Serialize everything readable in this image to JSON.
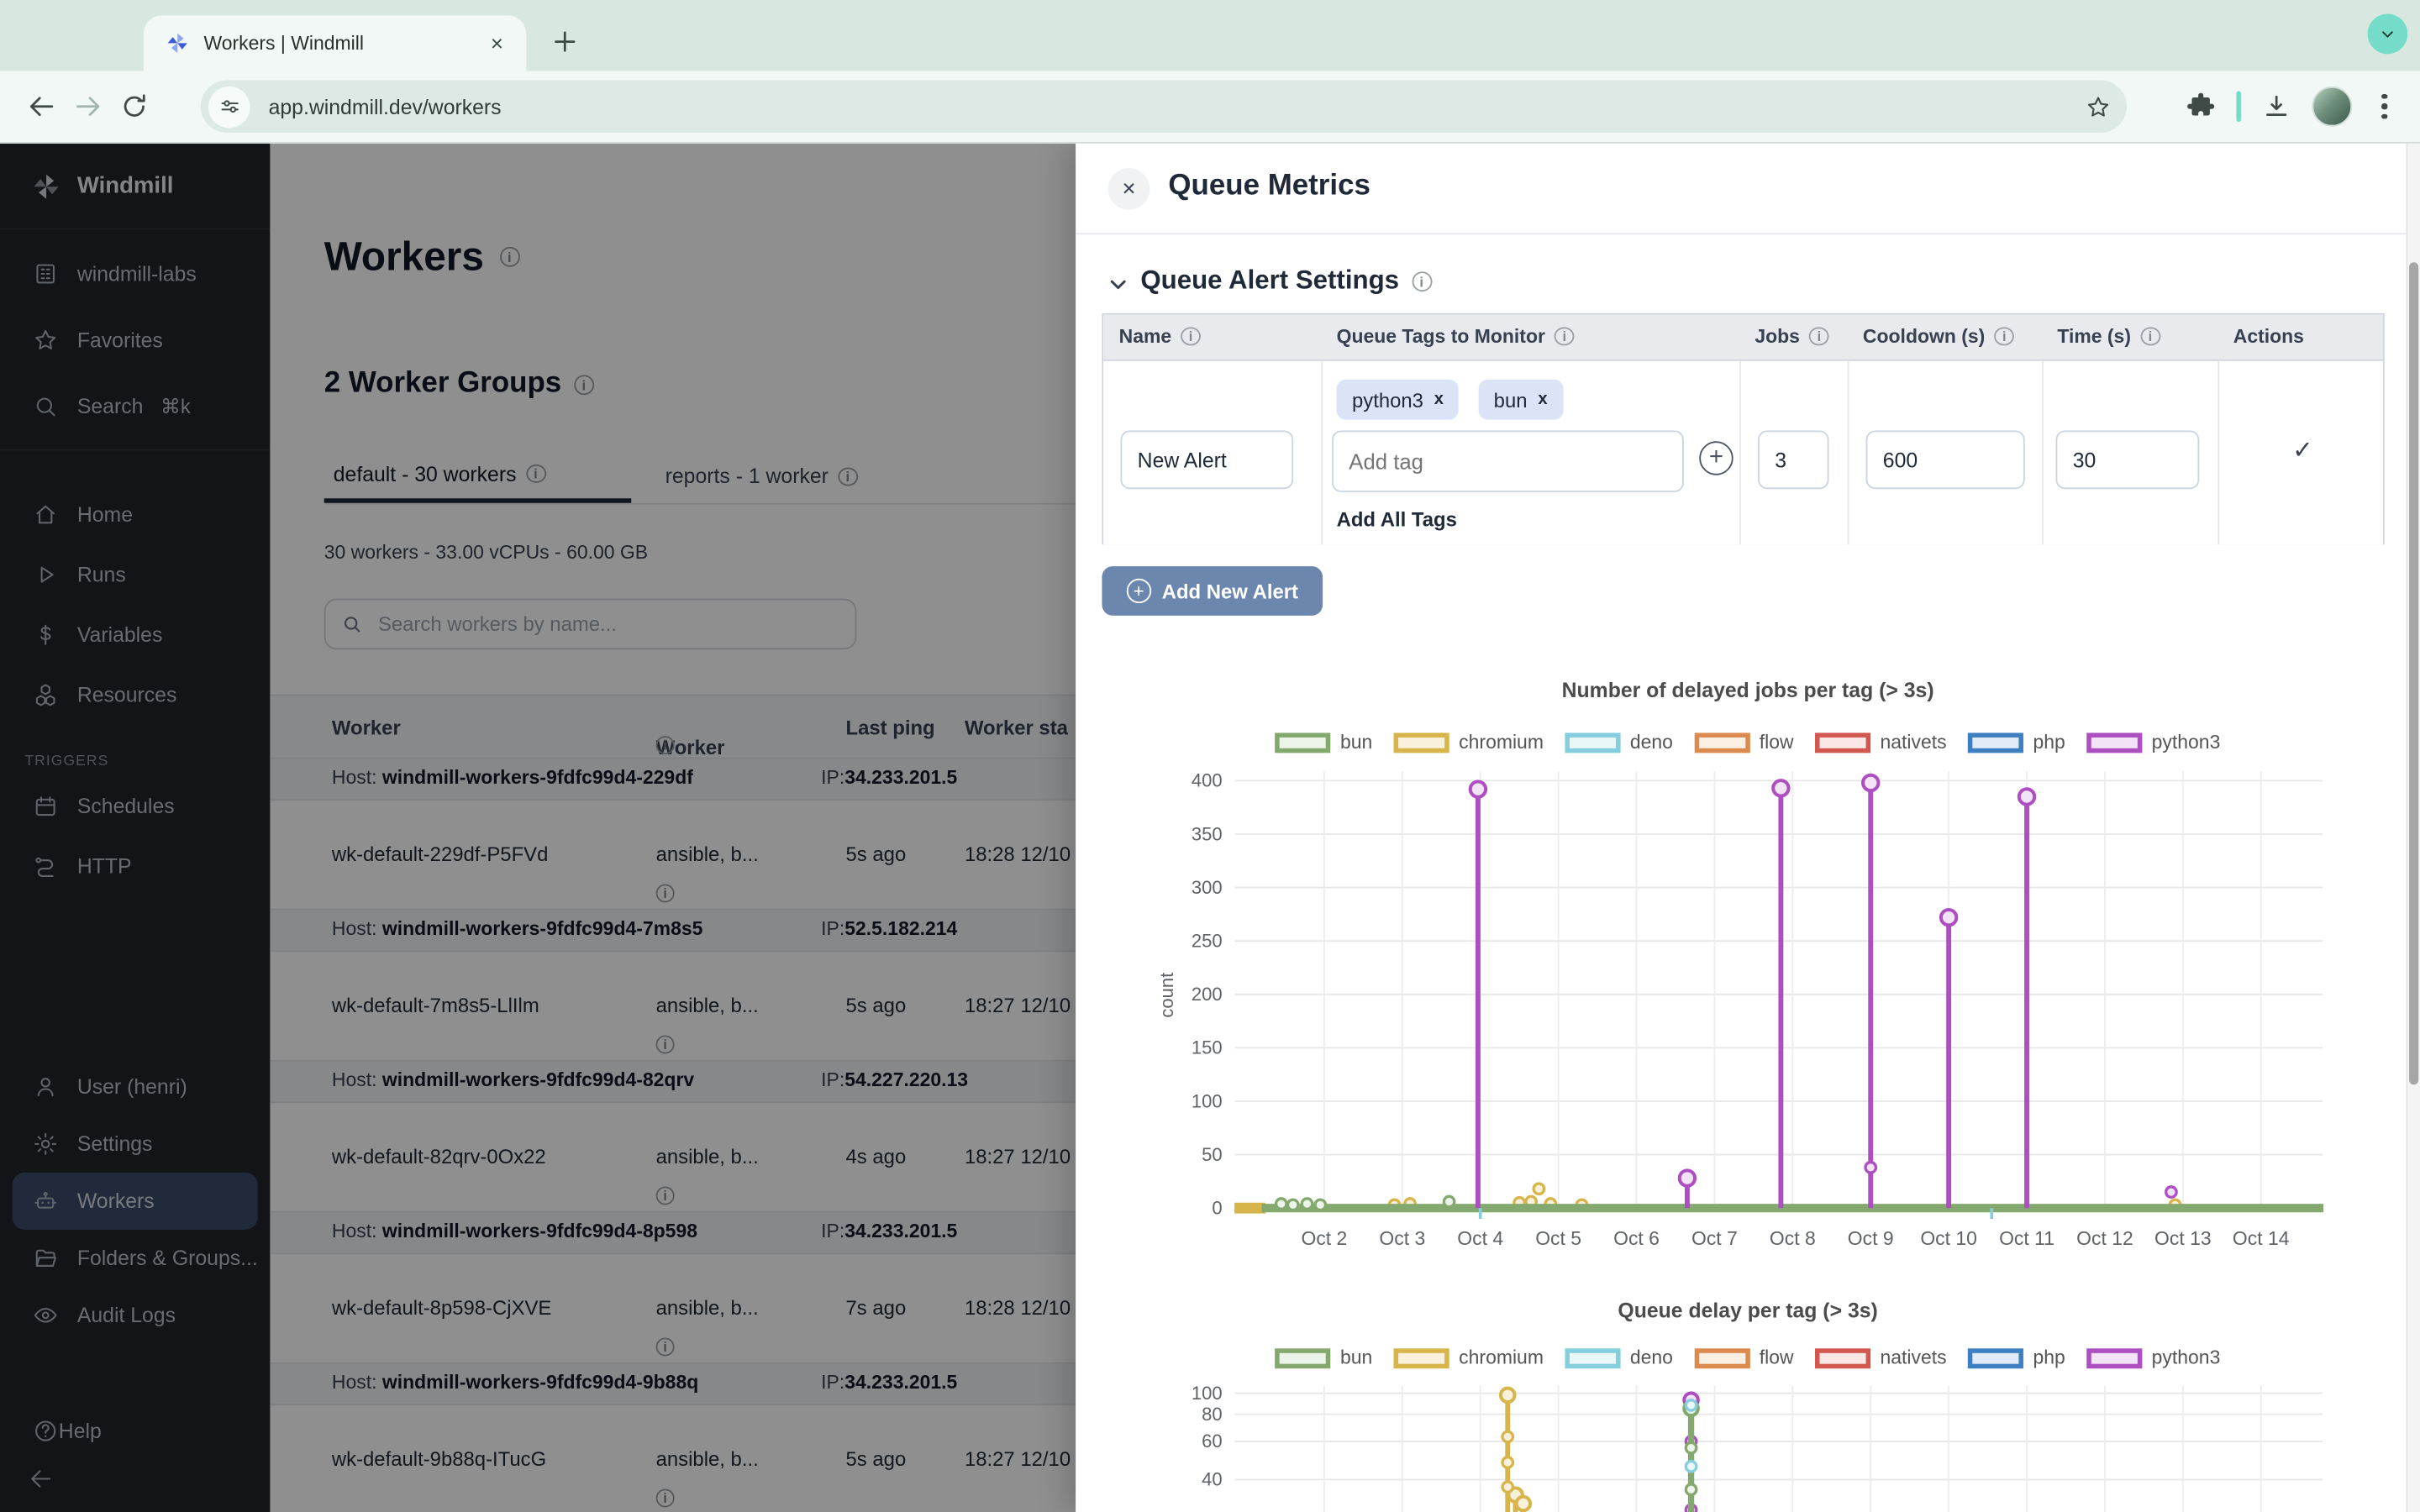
{
  "browser": {
    "tab_title": "Workers | Windmill",
    "url": "app.windmill.dev/workers",
    "new_tab_glyph": "+",
    "close_glyph": "×"
  },
  "colors": {
    "accent_teal": "#74dcc8",
    "button_blue": "#6b87ae",
    "chip_bg": "#dbe4f6",
    "sidebar_bg": "#20242b",
    "selected_item_bg": "#3a4c6a"
  },
  "sidebar": {
    "brand": "Windmill",
    "sections": [
      {
        "items": [
          {
            "icon": "workspace-icon",
            "label": "windmill-labs"
          },
          {
            "icon": "star-icon",
            "label": "Favorites"
          },
          {
            "icon": "search-icon",
            "label": "Search",
            "shortcut": "⌘k"
          }
        ]
      },
      {
        "items": [
          {
            "icon": "home-icon",
            "label": "Home"
          },
          {
            "icon": "play-icon",
            "label": "Runs"
          },
          {
            "icon": "dollar-icon",
            "label": "Variables"
          },
          {
            "icon": "cubes-icon",
            "label": "Resources"
          }
        ]
      }
    ],
    "triggers_label": "TRIGGERS",
    "triggers": [
      {
        "icon": "calendar-icon",
        "label": "Schedules"
      },
      {
        "icon": "route-icon",
        "label": "HTTP"
      }
    ],
    "bottom": [
      {
        "icon": "user-icon",
        "label": "User (henri)"
      },
      {
        "icon": "gear-icon",
        "label": "Settings"
      },
      {
        "icon": "robot-icon",
        "label": "Workers",
        "active": true
      },
      {
        "icon": "folder-icon",
        "label": "Folders & Groups..."
      },
      {
        "icon": "eye-icon",
        "label": "Audit Logs"
      }
    ],
    "help_label": "Help"
  },
  "main": {
    "title": "Workers",
    "groups_title": "2 Worker Groups",
    "tabs": [
      {
        "label": "default - 30 workers",
        "active": true
      },
      {
        "label": "reports - 1 worker",
        "active": false
      }
    ],
    "stats": "30 workers - 33.00 vCPUs - 60.00 GB",
    "search_placeholder": "Search workers by name...",
    "table": {
      "headers": [
        "Worker",
        "Worker Tags",
        "Last ping",
        "Worker sta"
      ],
      "host_prefix": "Host:",
      "ip_prefix": "IP:",
      "rows": [
        {
          "type": "host",
          "host": "windmill-workers-9fdfc99d4-229df",
          "ip": "34.233.201.5"
        },
        {
          "type": "worker",
          "name": "wk-default-229df-P5FVd",
          "tags": "ansible, b...",
          "ping": "5s ago",
          "started": "18:28 12/10"
        },
        {
          "type": "host",
          "host": "windmill-workers-9fdfc99d4-7m8s5",
          "ip": "52.5.182.214"
        },
        {
          "type": "worker",
          "name": "wk-default-7m8s5-LlIlm",
          "tags": "ansible, b...",
          "ping": "5s ago",
          "started": "18:27 12/10"
        },
        {
          "type": "host",
          "host": "windmill-workers-9fdfc99d4-82qrv",
          "ip": "54.227.220.13"
        },
        {
          "type": "worker",
          "name": "wk-default-82qrv-0Ox22",
          "tags": "ansible, b...",
          "ping": "4s ago",
          "started": "18:27 12/10"
        },
        {
          "type": "host",
          "host": "windmill-workers-9fdfc99d4-8p598",
          "ip": "34.233.201.5"
        },
        {
          "type": "worker",
          "name": "wk-default-8p598-CjXVE",
          "tags": "ansible, b...",
          "ping": "7s ago",
          "started": "18:28 12/10"
        },
        {
          "type": "host",
          "host": "windmill-workers-9fdfc99d4-9b88q",
          "ip": "34.233.201.5"
        },
        {
          "type": "worker",
          "name": "wk-default-9b88q-ITucG",
          "tags": "ansible, b...",
          "ping": "5s ago",
          "started": "18:27 12/10"
        }
      ]
    }
  },
  "drawer": {
    "title": "Queue Metrics",
    "section_title": "Queue Alert Settings",
    "alert_table": {
      "headers": [
        "Name",
        "Queue Tags to Monitor",
        "Jobs",
        "Cooldown (s)",
        "Time (s)",
        "Actions"
      ],
      "row": {
        "name_value": "New Alert",
        "tags": [
          "python3",
          "bun"
        ],
        "tag_close_glyph": "x",
        "add_tag_placeholder": "Add tag",
        "add_plus_glyph": "+",
        "add_all_label": "Add All Tags",
        "jobs_value": "3",
        "cooldown_value": "600",
        "time_value": "30",
        "actions_check_glyph": "✓"
      }
    },
    "add_button_label": "Add New Alert",
    "add_button_plus_glyph": "+"
  },
  "chart_data": [
    {
      "type": "line",
      "title": "Number of delayed jobs per tag (> 3s)",
      "xlabel": "",
      "ylabel": "count",
      "ylim": [
        0,
        400
      ],
      "grid": true,
      "legend_position": "top",
      "y_ticks": [
        0,
        50,
        100,
        150,
        200,
        250,
        300,
        350,
        400
      ],
      "x_ticks": [
        {
          "day": 2,
          "label": "Oct 2"
        },
        {
          "day": 3,
          "label": "Oct 3"
        },
        {
          "day": 4,
          "label": "Oct 4"
        },
        {
          "day": 5,
          "label": "Oct 5"
        },
        {
          "day": 6,
          "label": "Oct 6"
        },
        {
          "day": 7,
          "label": "Oct 7"
        },
        {
          "day": 8,
          "label": "Oct 8"
        },
        {
          "day": 9,
          "label": "Oct 9"
        },
        {
          "day": 10,
          "label": "Oct 10"
        },
        {
          "day": 11,
          "label": "Oct 11"
        },
        {
          "day": 12,
          "label": "Oct 12"
        },
        {
          "day": 13,
          "label": "Oct 13"
        },
        {
          "day": 14,
          "label": "Oct 14"
        }
      ],
      "legend": [
        {
          "label": "bun",
          "color": "#84a96e",
          "fill": "#ecf3e8"
        },
        {
          "label": "chromium",
          "color": "#d8b54a",
          "fill": "#faf1dc"
        },
        {
          "label": "deno",
          "color": "#85cedd",
          "fill": "#e9f7f9"
        },
        {
          "label": "flow",
          "color": "#dd8a4e",
          "fill": "#fcefe3"
        },
        {
          "label": "nativets",
          "color": "#d2574f",
          "fill": "#fbe7e6"
        },
        {
          "label": "php",
          "color": "#3d7fc1",
          "fill": "#e1ecf8"
        },
        {
          "label": "python3",
          "color": "#ad4fc0",
          "fill": "#f3e3f7"
        }
      ],
      "series": [
        {
          "name": "chromium",
          "color": "#d8b54a",
          "fill": "#faf1dc",
          "band": {
            "x1": 0.85,
            "x2": 1.25,
            "y": 0,
            "width": 7
          },
          "dots": [
            [
              2.9,
              3
            ],
            [
              3.1,
              4
            ],
            [
              4.5,
              5
            ],
            [
              4.65,
              6
            ],
            [
              4.75,
              18
            ],
            [
              4.9,
              4
            ],
            [
              5.3,
              3
            ],
            [
              12.9,
              3
            ]
          ]
        },
        {
          "name": "bun",
          "color": "#84a96e",
          "fill": "#ecf3e8",
          "band": {
            "x1": 1.2,
            "x2": 14.8,
            "y": 0,
            "width": 5.5
          },
          "dots": [
            [
              1.45,
              4
            ],
            [
              1.6,
              3
            ],
            [
              1.78,
              4
            ],
            [
              1.95,
              3
            ],
            [
              3.6,
              6
            ]
          ]
        },
        {
          "name": "deno",
          "color": "#85cedd",
          "fill": "#e9f7f9",
          "axis_ticks": [
            4.0,
            10.55
          ]
        },
        {
          "name": "python3",
          "color": "#ad4fc0",
          "fill": "#f3e3f7",
          "spikes": [
            [
              3.97,
              392
            ],
            [
              6.65,
              28
            ],
            [
              7.85,
              393
            ],
            [
              9,
              398
            ],
            [
              10,
              272
            ],
            [
              11,
              385
            ]
          ],
          "dots": [
            [
              9,
              38
            ],
            [
              12.85,
              15
            ]
          ]
        }
      ]
    },
    {
      "type": "line",
      "title": "Queue delay per tag (> 3s)",
      "xlabel": "",
      "ylabel": "",
      "y_scale": "log",
      "grid": true,
      "legend_position": "top",
      "y_ticks": [
        100,
        80,
        60,
        40
      ],
      "x_ticks": [],
      "legend": [
        {
          "label": "bun",
          "color": "#84a96e",
          "fill": "#ecf3e8"
        },
        {
          "label": "chromium",
          "color": "#d8b54a",
          "fill": "#faf1dc"
        },
        {
          "label": "deno",
          "color": "#85cedd",
          "fill": "#e9f7f9"
        },
        {
          "label": "flow",
          "color": "#dd8a4e",
          "fill": "#fcefe3"
        },
        {
          "label": "nativets",
          "color": "#d2574f",
          "fill": "#fbe7e6"
        },
        {
          "label": "php",
          "color": "#3d7fc1",
          "fill": "#e1ecf8"
        },
        {
          "label": "python3",
          "color": "#ad4fc0",
          "fill": "#f3e3f7"
        }
      ],
      "series": [
        {
          "name": "chromium",
          "color": "#d8b54a",
          "fill": "#faf1dc",
          "spikes": [
            [
              4.35,
              98
            ],
            [
              4.45,
              34
            ],
            [
              4.55,
              31
            ]
          ],
          "dots": [
            [
              4.35,
              63
            ],
            [
              4.35,
              48
            ],
            [
              4.35,
              37
            ]
          ]
        },
        {
          "name": "python3",
          "color": "#ad4fc0",
          "fill": "#f3e3f7",
          "spikes": [
            [
              6.7,
              93
            ]
          ],
          "dots": [
            [
              6.7,
              60
            ],
            [
              6.7,
              29
            ]
          ]
        },
        {
          "name": "bun",
          "color": "#84a96e",
          "fill": "#ecf3e8",
          "width": 4,
          "spikes": [
            [
              6.7,
              85
            ]
          ],
          "dots": [
            [
              6.7,
              56
            ],
            [
              6.7,
              36
            ]
          ]
        },
        {
          "name": "deno",
          "color": "#85cedd",
          "fill": "#e9f7f9",
          "dots": [
            [
              6.7,
              88
            ],
            [
              6.7,
              46
            ]
          ]
        }
      ]
    }
  ]
}
